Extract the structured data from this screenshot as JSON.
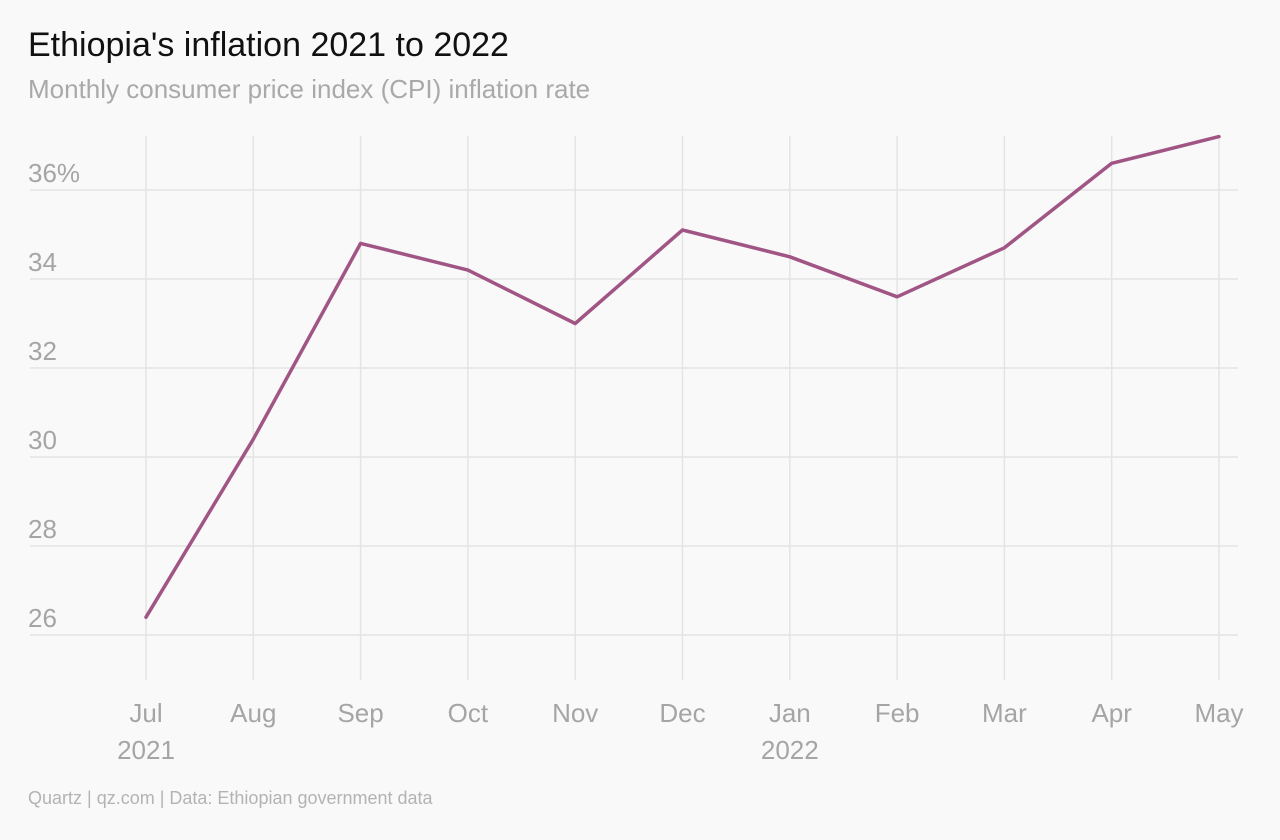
{
  "title": "Ethiopia's inflation 2021 to 2022",
  "subtitle": "Monthly consumer price index (CPI) inflation rate",
  "footer": "Quartz | qz.com | Data: Ethiopian government data",
  "colors": {
    "line": "#a05585",
    "grid": "#e4e4e4",
    "text_muted": "#a5a5a5",
    "background": "#f9f9f9"
  },
  "chart_data": {
    "type": "line",
    "x": [
      "Jul",
      "Aug",
      "Sep",
      "Oct",
      "Nov",
      "Dec",
      "Jan",
      "Feb",
      "Mar",
      "Apr",
      "May"
    ],
    "year_labels": [
      {
        "at": "Jul",
        "label": "2021"
      },
      {
        "at": "Jan",
        "label": "2022"
      }
    ],
    "series": [
      {
        "values": [
          26.4,
          30.4,
          34.8,
          34.2,
          33.0,
          35.1,
          34.5,
          33.6,
          34.7,
          36.6,
          37.2
        ]
      }
    ],
    "y_ticks": [
      26,
      28,
      30,
      32,
      34,
      36
    ],
    "y_tick_labels": [
      "26",
      "28",
      "30",
      "32",
      "34",
      "36%"
    ],
    "ylim": [
      25,
      37.2
    ],
    "grid": true,
    "xlabel": "",
    "ylabel": ""
  }
}
